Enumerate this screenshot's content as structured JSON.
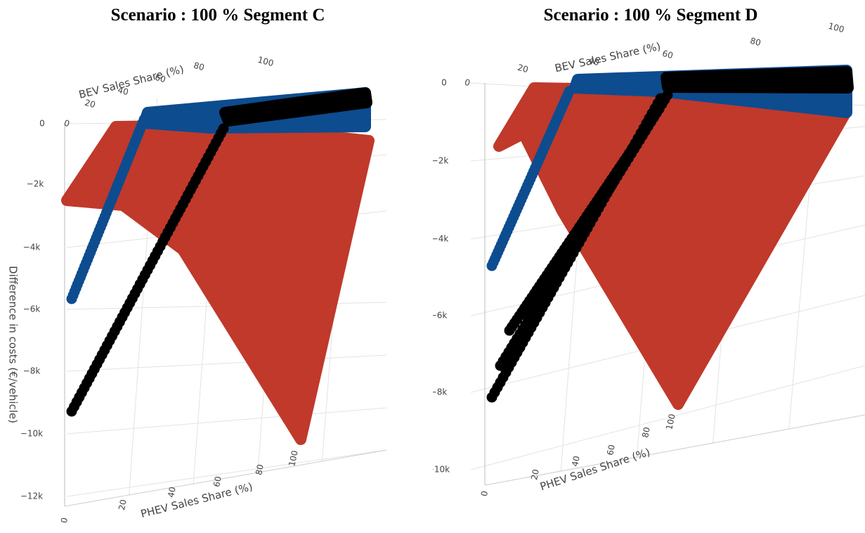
{
  "colors": {
    "red": "#c0392b",
    "blue": "#0d4c8f",
    "black": "#000000",
    "grid": "#e3e3e3"
  },
  "chart_data": [
    {
      "type": "scatter",
      "title": "Scenario : 100 % Segment C",
      "zlabel": "Difference in costs (€/vehicle)",
      "xlabel": "PHEV Sales Share (%)",
      "ylabel": "BEV Sales Share (%)",
      "zticks": [
        "0",
        "−2k",
        "−4k",
        "−6k",
        "−8k",
        "−10k",
        "−12k"
      ],
      "xticks": [
        "0",
        "20",
        "40",
        "60",
        "80",
        "100"
      ],
      "yticks": [
        "0",
        "20",
        "40",
        "60",
        "80",
        "100"
      ],
      "zlim": [
        -12000,
        0
      ],
      "series": [
        {
          "values_min": -10400,
          "values_max": -600
        },
        {
          "values_min": -5800,
          "values_max": -300
        },
        {
          "values_min": -9400,
          "values_max": -200
        }
      ]
    },
    {
      "type": "scatter",
      "title": "Scenario : 100 % Segment D",
      "zlabel": "Difference in costs (€/vehicle)",
      "xlabel": "PHEV Sales Share (%)",
      "ylabel": "BEV Sales Share (%)",
      "zticks": [
        "0",
        "−2k",
        "−4k",
        "−6k",
        "−8k",
        "−10k"
      ],
      "xticks": [
        "0",
        "20",
        "40",
        "60",
        "80",
        "100"
      ],
      "yticks": [
        "0",
        "20",
        "40",
        "60",
        "80",
        "100"
      ],
      "zlim": [
        -10000,
        0
      ],
      "series": [
        {
          "values_min": -8500,
          "values_max": -300
        },
        {
          "values_min": -4800,
          "values_max": -200
        },
        {
          "values_min": -8200,
          "values_max": -100
        }
      ]
    }
  ]
}
